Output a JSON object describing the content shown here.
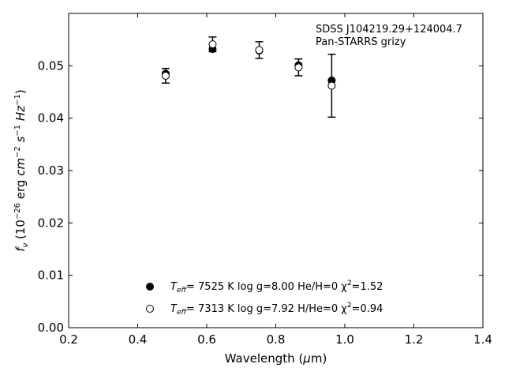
{
  "chart_data": {
    "type": "scatter",
    "title": "",
    "xlabel": "Wavelength (μm)",
    "ylabel": "fν (10⁻²⁶ erg cm⁻² s⁻¹ Hz⁻¹)",
    "xlim": [
      0.2,
      1.4
    ],
    "ylim": [
      0.0,
      0.06
    ],
    "xticks": [
      "0.2",
      "0.4",
      "0.6",
      "0.8",
      "1.0",
      "1.2",
      "1.4"
    ],
    "yticks": [
      "0.00",
      "0.01",
      "0.02",
      "0.03",
      "0.04",
      "0.05"
    ],
    "grid": false,
    "legend_position": "bottom-center",
    "annotation": {
      "line1": "SDSS J104219.29+124004.7",
      "line2": "Pan-STARRS grizy"
    },
    "observed": {
      "x": [
        0.481,
        0.617,
        0.752,
        0.866,
        0.962
      ],
      "y": [
        0.0481,
        0.0541,
        0.053,
        0.0497,
        0.0462
      ],
      "yerr": [
        0.0014,
        0.0014,
        0.0016,
        0.0016,
        0.006
      ]
    },
    "series": [
      {
        "name": "Teff= 7525 K log g=8.00 He/H=0 χ²=1.52",
        "marker": "filled-circle",
        "x": [
          0.481,
          0.617,
          0.752,
          0.866,
          0.962
        ],
        "y": [
          0.0485,
          0.0532,
          0.0529,
          0.0501,
          0.0472
        ]
      },
      {
        "name": "Teff= 7313 K log g=7.92 H/He=0 χ²=0.94",
        "marker": "open-circle",
        "x": [
          0.481,
          0.617,
          0.752,
          0.866,
          0.962
        ],
        "y": [
          0.0481,
          0.0541,
          0.053,
          0.0497,
          0.0462
        ]
      }
    ],
    "legend": [
      {
        "teff_label": "T",
        "teff_sub": "eff",
        "teff_rest": "=  7525 K  log g=8.00  He/H=0  χ",
        "sup": "2",
        "tail": "=1.52"
      },
      {
        "teff_label": "T",
        "teff_sub": "eff",
        "teff_rest": "=  7313 K  log g=7.92  H/He=0  χ",
        "sup": "2",
        "tail": "=0.94"
      }
    ]
  }
}
